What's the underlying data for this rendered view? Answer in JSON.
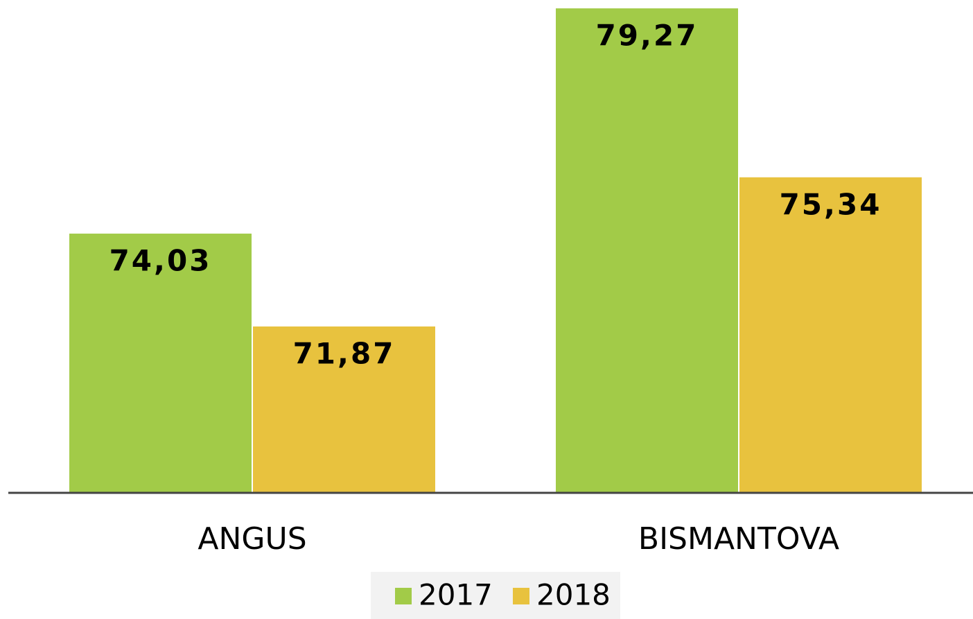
{
  "chart_data": {
    "type": "bar",
    "categories": [
      "ANGUS",
      "BISMANTOVA"
    ],
    "series": [
      {
        "name": "2017",
        "color": "#a2cb48",
        "values": [
          74.03,
          79.27
        ],
        "value_labels": [
          "74,03",
          "79,27"
        ]
      },
      {
        "name": "2018",
        "color": "#e8c23e",
        "values": [
          71.87,
          75.34
        ],
        "value_labels": [
          "71,87",
          "75,34"
        ]
      }
    ],
    "ylim": [
      68,
      79.4
    ]
  }
}
